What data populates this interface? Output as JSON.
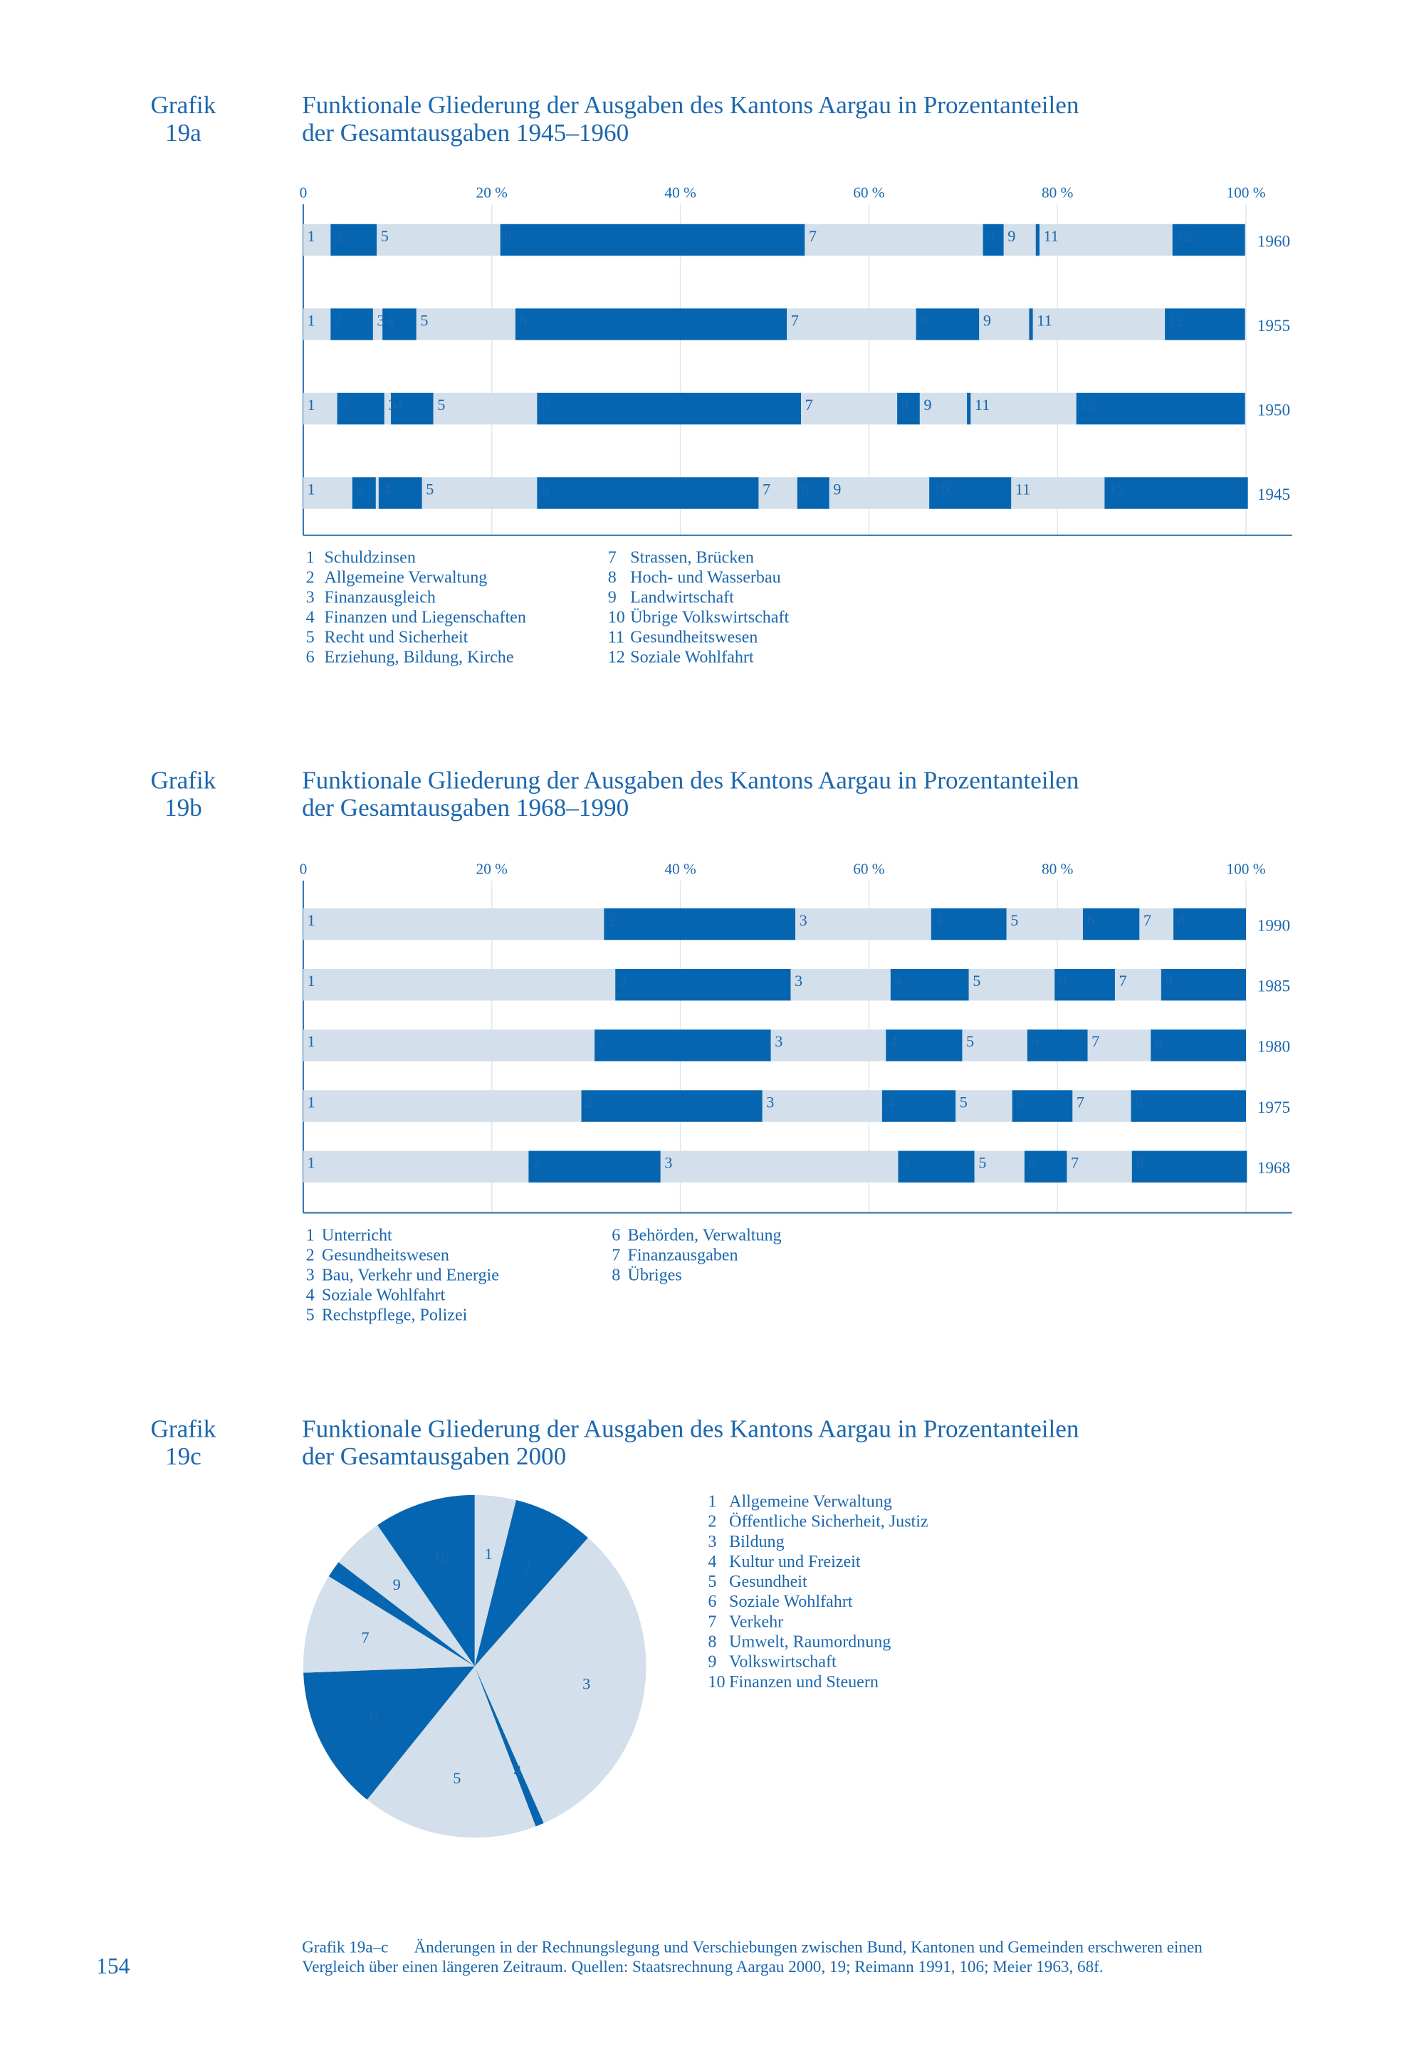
{
  "page_number": "154",
  "chart_data": [
    {
      "type": "bar",
      "orientation": "horizontal",
      "stacked": true,
      "label_prefix": "Grafik",
      "label_number": "19a",
      "title": [
        "Funktionale Gliederung der Ausgaben des Kantons Aargau in Prozentanteilen",
        "der Gesamtausgaben 1945–1960"
      ],
      "categories": [
        "1960",
        "1955",
        "1950",
        "1945"
      ],
      "xlim": [
        0,
        100
      ],
      "xticks": [
        0,
        {
          "value": 20,
          "label": "20 %"
        },
        {
          "value": 40,
          "label": "40 %"
        },
        {
          "value": 60,
          "label": "60 %"
        },
        {
          "value": 80,
          "label": "80 %"
        },
        {
          "value": 100,
          "label": "100 %"
        }
      ],
      "grid": true,
      "series": [
        {
          "key": "1",
          "name": "Schuldzinsen",
          "color": "#d3dfea",
          "values": [
            2.9,
            2.9,
            3.6,
            5.2
          ]
        },
        {
          "key": "2",
          "name": "Allgemeine Verwaltung",
          "color": "#0565b0",
          "values": [
            4.9,
            4.5,
            5.0,
            2.5
          ]
        },
        {
          "key": "3",
          "name": "Finanzausgleich",
          "color": "#d3dfea",
          "values": [
            null,
            1.0,
            0.7,
            0.3
          ]
        },
        {
          "key": "4",
          "name": "Finanzen und Liegenschaften",
          "color": "#0565b0",
          "values": [
            null,
            3.6,
            4.5,
            4.6
          ]
        },
        {
          "key": "5",
          "name": "Recht und Sicherheit",
          "color": "#d3dfea",
          "values": [
            13.1,
            10.5,
            11.0,
            12.2
          ]
        },
        {
          "key": "6",
          "name": "Erziehung, Bildung, Kirche",
          "color": "#0565b0",
          "values": [
            32.3,
            28.8,
            28.0,
            23.5
          ]
        },
        {
          "key": "7",
          "name": "Strassen, Brücken",
          "color": "#d3dfea",
          "values": [
            18.9,
            13.7,
            10.2,
            4.1
          ]
        },
        {
          "key": "8",
          "name": "Hoch- und Wasserbau",
          "color": "#0565b0",
          "values": [
            2.2,
            6.7,
            2.4,
            3.4
          ]
        },
        {
          "key": "9",
          "name": "Landwirtschaft",
          "color": "#d3dfea",
          "values": [
            3.4,
            5.3,
            5.0,
            10.6
          ]
        },
        {
          "key": "10",
          "name": "Übrige Volkswirtschaft",
          "color": "#0565b0",
          "values": [
            0.4,
            0.4,
            0.4,
            8.7
          ]
        },
        {
          "key": "11",
          "name": "Gesundheitswesen",
          "color": "#d3dfea",
          "values": [
            14.1,
            14.0,
            11.2,
            9.9
          ]
        },
        {
          "key": "12",
          "name": "Soziale Wohlfahrt",
          "color": "#0565b0",
          "values": [
            7.7,
            8.5,
            17.9,
            15.2
          ]
        }
      ]
    },
    {
      "type": "bar",
      "orientation": "horizontal",
      "stacked": true,
      "label_prefix": "Grafik",
      "label_number": "19b",
      "title": [
        "Funktionale Gliederung der Ausgaben des Kantons Aargau in Prozentanteilen",
        "der Gesamtausgaben 1968–1990"
      ],
      "categories": [
        "1990",
        "1985",
        "1980",
        "1975",
        "1968"
      ],
      "xlim": [
        0,
        100
      ],
      "xticks": [
        0,
        {
          "value": 20,
          "label": "20 %"
        },
        {
          "value": 40,
          "label": "40 %"
        },
        {
          "value": 60,
          "label": "60 %"
        },
        {
          "value": 80,
          "label": "80 %"
        },
        {
          "value": 100,
          "label": "100 %"
        }
      ],
      "grid": true,
      "series": [
        {
          "key": "1",
          "name": "Unterricht",
          "color": "#d3dfea",
          "values": [
            31.9,
            33.1,
            30.9,
            29.5,
            23.9
          ]
        },
        {
          "key": "2",
          "name": "Gesundheitswesen",
          "color": "#0565b0",
          "values": [
            20.3,
            18.6,
            18.7,
            19.2,
            14.0
          ]
        },
        {
          "key": "3",
          "name": "Bau, Verkehr und Energie",
          "color": "#d3dfea",
          "values": [
            14.4,
            10.6,
            12.2,
            12.7,
            25.2
          ]
        },
        {
          "key": "4",
          "name": "Soziale Wohlfahrt",
          "color": "#0565b0",
          "values": [
            8.0,
            8.3,
            8.1,
            7.8,
            8.1
          ]
        },
        {
          "key": "5",
          "name": "Rechstpflege, Polizei",
          "color": "#d3dfea",
          "values": [
            8.1,
            9.1,
            6.9,
            6.0,
            5.3
          ]
        },
        {
          "key": "6",
          "name": "Behörden, Verwaltung",
          "color": "#0565b0",
          "values": [
            6.0,
            6.4,
            6.4,
            6.4,
            4.5
          ]
        },
        {
          "key": "7",
          "name": "Finanzausgaben",
          "color": "#d3dfea",
          "values": [
            3.6,
            4.9,
            6.7,
            6.2,
            6.9
          ]
        },
        {
          "key": "8",
          "name": "Übriges",
          "color": "#0565b0",
          "values": [
            7.7,
            9.0,
            10.1,
            12.2,
            12.2
          ]
        }
      ]
    },
    {
      "type": "pie",
      "label_prefix": "Grafik",
      "label_number": "19c",
      "title": [
        "Funktionale Gliederung der Ausgaben des Kantons Aargau in Prozentanteilen",
        "der Gesamtausgaben 2000"
      ],
      "keys": [
        "1",
        "2",
        "3",
        "4",
        "5",
        "6",
        "7",
        "8",
        "9",
        "10"
      ],
      "categories": [
        "Allgemeine Verwaltung",
        "Öffentliche Sicherheit, Justiz",
        "Bildung",
        "Kultur und Freizeit",
        "Gesundheit",
        "Soziale Wohlfahrt",
        "Verkehr",
        "Umwelt, Raumordnung",
        "Volkswirtschaft",
        "Finanzen und Steuern"
      ],
      "values": [
        3.9,
        7.6,
        31.9,
        0.8,
        16.6,
        13.6,
        9.4,
        1.6,
        5.0,
        9.6
      ],
      "colors": [
        "#d3dfea",
        "#0565b0",
        "#d3dfea",
        "#0565b0",
        "#d3dfea",
        "#0565b0",
        "#d3dfea",
        "#0565b0",
        "#d3dfea",
        "#0565b0"
      ]
    }
  ],
  "caption": {
    "label": "Grafik 19a–c",
    "lines": [
      "Änderungen in der Rechnungslegung und Verschiebungen zwischen Bund, Kantonen und Gemeinden erschweren einen",
      "Vergleich über einen längeren Zeitraum. Quellen: Staatsrechnung Aargau 2000, 19; Reimann 1991, 106; Meier 1963, 68f."
    ]
  }
}
